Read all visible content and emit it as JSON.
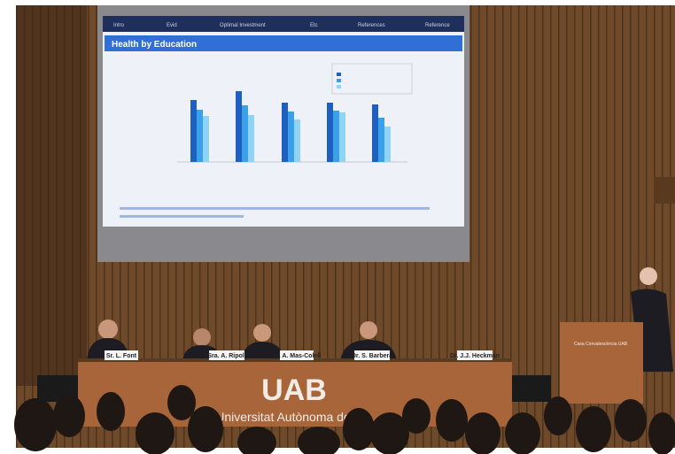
{
  "slide": {
    "nav": [
      "Intro",
      "Evid",
      "Optimal Investment",
      "Etc",
      "References",
      "Reference"
    ],
    "title": "Health by Education"
  },
  "nameplates": [
    "Sr. L. Font",
    "Sra. A. Ripoll",
    "Sr. A. Mas-Colell",
    "Dr. S. Barberà",
    "Dr. J.J. Heckman"
  ],
  "banner": {
    "logo": "UAB",
    "name": "Universitat Autònoma de Ba"
  },
  "podium": {
    "label": "Casa Convalescència UAB"
  }
}
